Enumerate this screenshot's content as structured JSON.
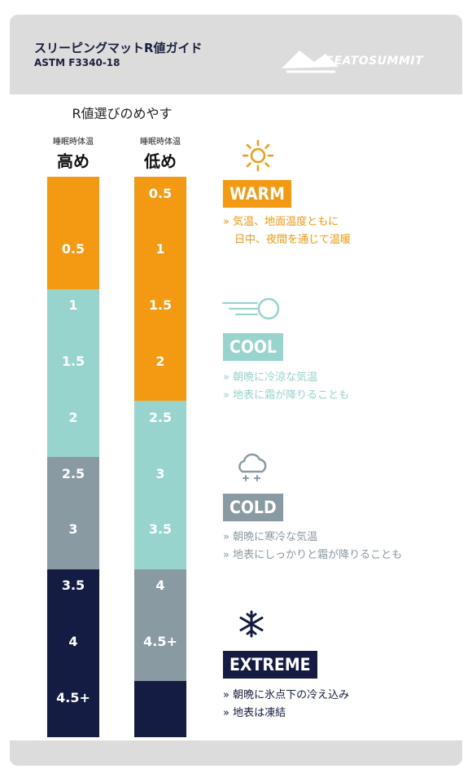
{
  "header": {
    "title": "スリーピングマットR値ガイド",
    "subtitle": "ASTM F3340-18",
    "logo": "SEATOSUMMIT"
  },
  "guide_label": "R値選びのめやす",
  "columns": [
    {
      "small": "睡眠時体温",
      "big": "高め"
    },
    {
      "small": "睡眠時体温",
      "big": "低め"
    }
  ],
  "colors": {
    "warm": "#f39a12",
    "cool": "#96d4cd",
    "cold": "#8a9aa3",
    "extreme": "#141c43"
  },
  "chart_data": {
    "type": "bar",
    "bars": [
      {
        "label": "高め",
        "ticks": [
          "0.5",
          "1",
          "1.5",
          "2",
          "2.5",
          "3",
          "3.5",
          "4",
          "4.5+"
        ],
        "zones": [
          {
            "zone": "WARM",
            "from": 0,
            "to": 1
          },
          {
            "zone": "COOL",
            "from": 1,
            "to": 2.5
          },
          {
            "zone": "COLD",
            "from": 2.5,
            "to": 3.5
          },
          {
            "zone": "EXTREME",
            "from": 3.5,
            "to": 5
          }
        ]
      },
      {
        "label": "低め",
        "ticks": [
          "0.5",
          "1",
          "1.5",
          "2",
          "2.5",
          "3",
          "3.5",
          "4",
          "4.5+"
        ],
        "zones": [
          {
            "zone": "WARM",
            "from": 0,
            "to": 2
          },
          {
            "zone": "COOL",
            "from": 2,
            "to": 3.5
          },
          {
            "zone": "COLD",
            "from": 3.5,
            "to": 4.5
          },
          {
            "zone": "EXTREME",
            "from": 4.5,
            "to": 5
          }
        ]
      }
    ]
  },
  "zones": [
    {
      "name": "WARM",
      "lines": [
        "» 気温、地面温度ともに",
        "日中、夜間を通じて温暖"
      ],
      "icon": "sun-icon"
    },
    {
      "name": "COOL",
      "lines": [
        "» 朝晩に冷涼な気温",
        "» 地表に霜が降りることも"
      ],
      "icon": "wind-icon"
    },
    {
      "name": "COLD",
      "lines": [
        "» 朝晩に寒冷な気温",
        "» 地表にしっかりと霜が降りることも"
      ],
      "icon": "cloud-snow-icon"
    },
    {
      "name": "EXTREME",
      "lines": [
        "» 朝晩に氷点下の冷え込み",
        "» 地表は凍結"
      ],
      "icon": "snowflake-icon"
    }
  ]
}
